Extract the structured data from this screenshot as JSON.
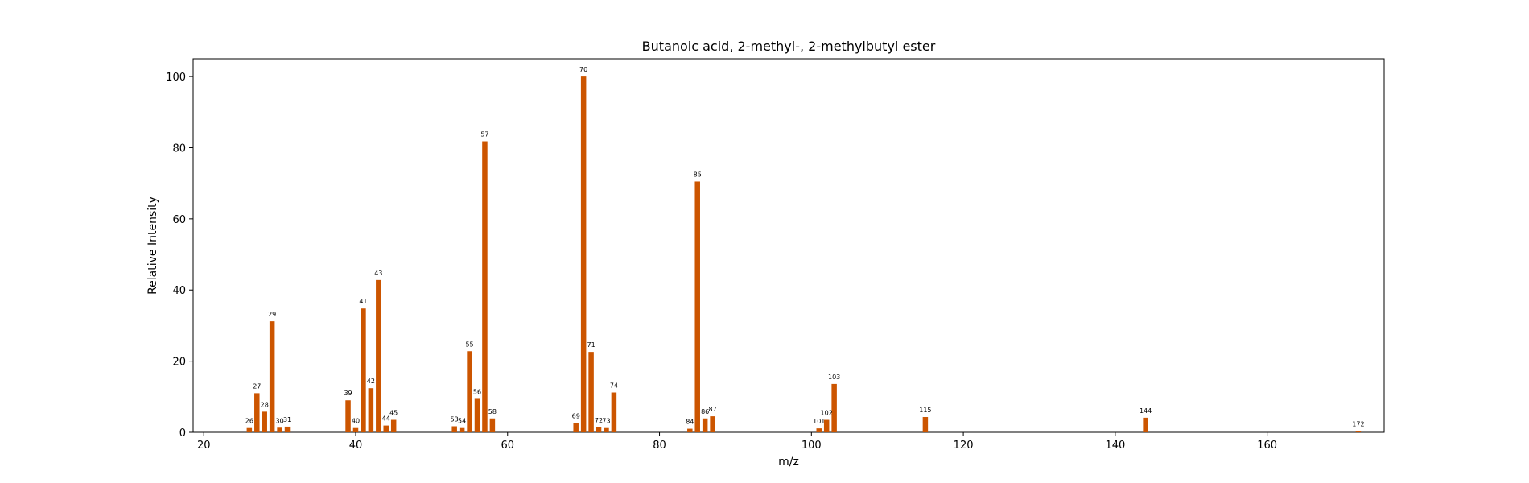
{
  "chart_data": {
    "type": "bar",
    "title": "Butanoic acid, 2-methyl-, 2-methylbutyl ester",
    "xlabel": "m/z",
    "ylabel": "Relative Intensity",
    "xlim": [
      18.6,
      175.4
    ],
    "ylim": [
      0,
      105
    ],
    "xticks": [
      20,
      40,
      60,
      80,
      100,
      120,
      140,
      160
    ],
    "yticks": [
      0,
      20,
      40,
      60,
      80,
      100
    ],
    "grid": false,
    "bar_color": "#cc5500",
    "peaks": [
      {
        "mz": 26,
        "intensity": 1.2
      },
      {
        "mz": 27,
        "intensity": 11.0
      },
      {
        "mz": 28,
        "intensity": 5.8
      },
      {
        "mz": 29,
        "intensity": 31.2
      },
      {
        "mz": 30,
        "intensity": 1.3
      },
      {
        "mz": 31,
        "intensity": 1.6
      },
      {
        "mz": 39,
        "intensity": 9.0
      },
      {
        "mz": 40,
        "intensity": 1.2
      },
      {
        "mz": 41,
        "intensity": 34.8
      },
      {
        "mz": 42,
        "intensity": 12.4
      },
      {
        "mz": 43,
        "intensity": 42.8
      },
      {
        "mz": 44,
        "intensity": 1.9
      },
      {
        "mz": 45,
        "intensity": 3.5
      },
      {
        "mz": 53,
        "intensity": 1.7
      },
      {
        "mz": 54,
        "intensity": 1.2
      },
      {
        "mz": 55,
        "intensity": 22.8
      },
      {
        "mz": 56,
        "intensity": 9.4
      },
      {
        "mz": 57,
        "intensity": 81.8
      },
      {
        "mz": 58,
        "intensity": 3.9
      },
      {
        "mz": 69,
        "intensity": 2.6
      },
      {
        "mz": 70,
        "intensity": 100.0
      },
      {
        "mz": 71,
        "intensity": 22.6
      },
      {
        "mz": 72,
        "intensity": 1.4
      },
      {
        "mz": 73,
        "intensity": 1.2
      },
      {
        "mz": 74,
        "intensity": 11.2
      },
      {
        "mz": 84,
        "intensity": 1.0
      },
      {
        "mz": 85,
        "intensity": 70.5
      },
      {
        "mz": 86,
        "intensity": 3.9
      },
      {
        "mz": 87,
        "intensity": 4.5
      },
      {
        "mz": 101,
        "intensity": 1.1
      },
      {
        "mz": 102,
        "intensity": 3.5
      },
      {
        "mz": 103,
        "intensity": 13.6
      },
      {
        "mz": 115,
        "intensity": 4.3
      },
      {
        "mz": 144,
        "intensity": 4.1
      },
      {
        "mz": 172,
        "intensity": 0.3
      }
    ]
  }
}
